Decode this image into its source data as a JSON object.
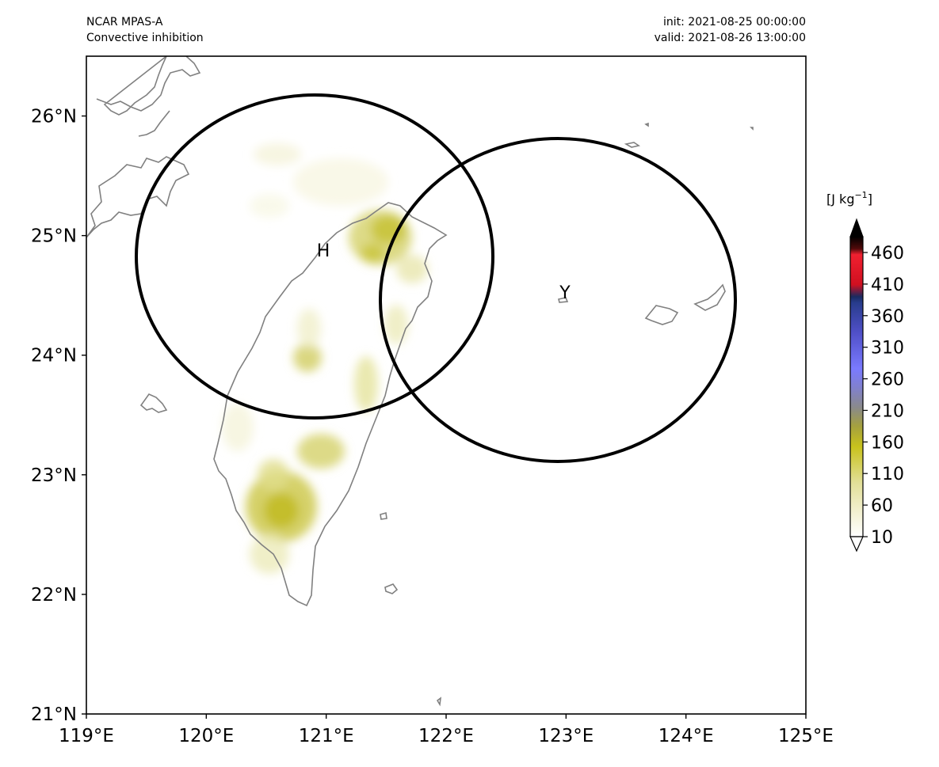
{
  "header": {
    "model": "NCAR MPAS-A",
    "variable": "Convective inhibition",
    "init": "init: 2021-08-25 00:00:00",
    "valid": "valid: 2021-08-26 13:00:00"
  },
  "map": {
    "lon_range": [
      119,
      125
    ],
    "lat_range": [
      21,
      26.5
    ],
    "lon_ticks": [
      "119°E",
      "120°E",
      "121°E",
      "122°E",
      "123°E",
      "124°E",
      "125°E"
    ],
    "lat_ticks": [
      "21°N",
      "22°N",
      "23°N",
      "24°N",
      "25°N",
      "26°N"
    ],
    "coastline_color": "#808080",
    "markers": [
      {
        "label": "H",
        "lon": 120.92,
        "lat": 24.83
      },
      {
        "label": "Y",
        "lon": 122.95,
        "lat": 24.47
      }
    ]
  },
  "colorbar": {
    "unit_prefix": "[J kg",
    "unit_exp": "−1",
    "unit_suffix": "]",
    "ticks": [
      "10",
      "60",
      "110",
      "160",
      "210",
      "260",
      "310",
      "360",
      "410",
      "460"
    ],
    "colors": [
      "#fdfdf4",
      "#f3f1d2",
      "#e5e3a3",
      "#d3d06a",
      "#c0bb1f",
      "#9a9842",
      "#8a8a8a",
      "#8080c8",
      "#7878ff",
      "#5a5ad8",
      "#3c3ca8",
      "#203070",
      "#c0101a",
      "#f01828",
      "#400808",
      "#000000"
    ]
  }
}
